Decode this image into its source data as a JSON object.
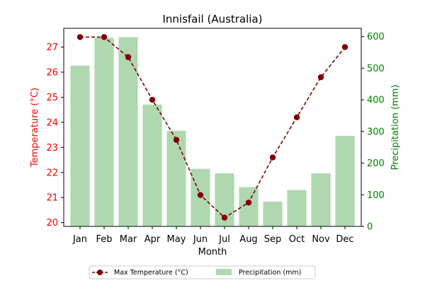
{
  "chart_data": {
    "type": "bar+line",
    "title": "Innisfail (Australia)",
    "xlabel": "Month",
    "categories": [
      "Jan",
      "Feb",
      "Mar",
      "Apr",
      "May",
      "Jun",
      "Jul",
      "Aug",
      "Sep",
      "Oct",
      "Nov",
      "Dec"
    ],
    "y_left": {
      "label": "Temperature (°C)",
      "range": [
        19.85,
        27.75
      ],
      "ticks": [
        20,
        21,
        22,
        23,
        24,
        25,
        26,
        27
      ],
      "color": "#ff0000"
    },
    "y_right": {
      "label": "Precipitation (mm)",
      "range": [
        0,
        626
      ],
      "ticks": [
        0,
        100,
        200,
        300,
        400,
        500,
        600
      ],
      "color": "#008000"
    },
    "series": [
      {
        "name": "Max Temperature (°C)",
        "type": "line",
        "axis": "left",
        "color": "#800000",
        "values": [
          27.4,
          27.4,
          26.6,
          24.9,
          23.3,
          21.1,
          20.2,
          20.8,
          22.6,
          24.2,
          25.8,
          27.0
        ]
      },
      {
        "name": "Precipitation (mm)",
        "type": "bar",
        "axis": "right",
        "color": "#b0d8b0",
        "values": [
          508,
          596,
          598,
          385,
          302,
          182,
          168,
          124,
          78,
          115,
          168,
          286
        ]
      }
    ],
    "legend": {
      "position": "bottom-center",
      "entries": [
        "Max Temperature (°C)",
        "Precipitation (mm)"
      ]
    },
    "grid": false
  }
}
